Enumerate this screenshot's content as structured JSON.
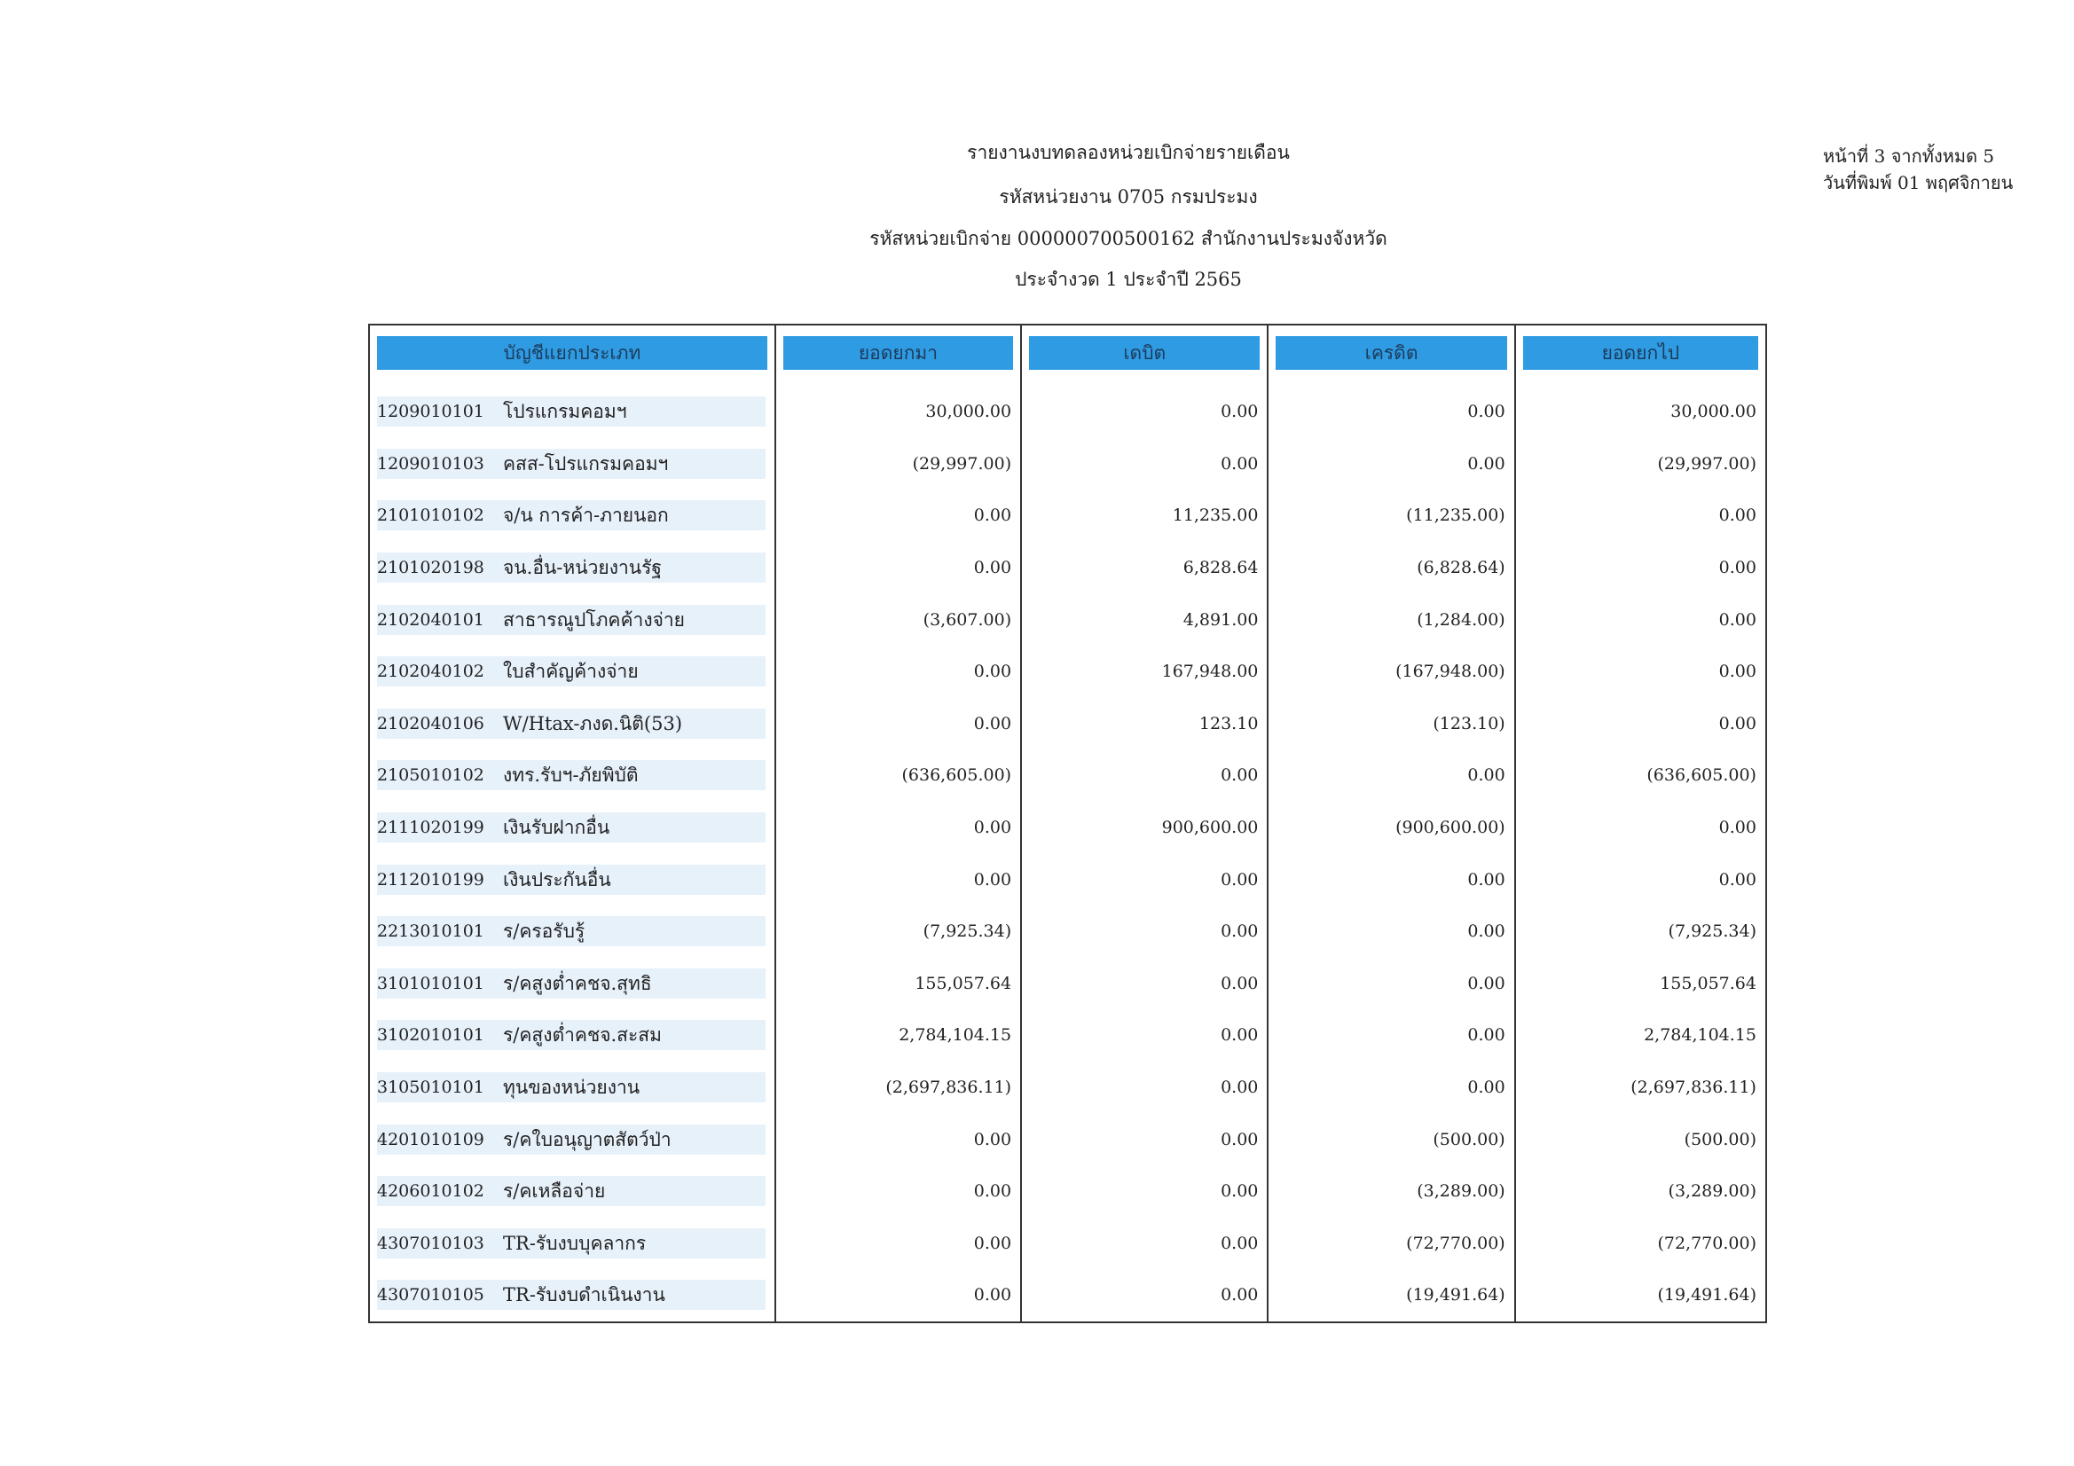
{
  "header": {
    "title_lines": [
      "รายงานงบทดลองหน่วยเบิกจ่ายรายเดือน",
      "รหัสหน่วยงาน 0705 กรมประมง",
      "รหัสหน่วยเบิกจ่าย 000000700500162 สำนักงานประมงจังหวัด",
      "ประจำงวด 1 ประจำปี 2565"
    ],
    "page_info": [
      "หน้าที่ 3 จากทั้งหมด 5",
      "วันที่พิมพ์ 01 พฤศจิกายน"
    ]
  },
  "table": {
    "columns": [
      "บัญชีแยกประเภท",
      "ยอดยกมา",
      "เดบิต",
      "เครดิต",
      "ยอดยกไป"
    ],
    "rows": [
      [
        "1209010101",
        "โปรแกรมคอมฯ",
        "30,000.00",
        "0.00",
        "0.00",
        "30,000.00"
      ],
      [
        "1209010103",
        "คสส-โปรแกรมคอมฯ",
        "(29,997.00)",
        "0.00",
        "0.00",
        "(29,997.00)"
      ],
      [
        "2101010102",
        "จ/น การค้า-ภายนอก",
        "0.00",
        "11,235.00",
        "(11,235.00)",
        "0.00"
      ],
      [
        "2101020198",
        "จน.อื่น-หน่วยงานรัฐ",
        "0.00",
        "6,828.64",
        "(6,828.64)",
        "0.00"
      ],
      [
        "2102040101",
        "สาธารณูปโภคค้างจ่าย",
        "(3,607.00)",
        "4,891.00",
        "(1,284.00)",
        "0.00"
      ],
      [
        "2102040102",
        "ใบสำคัญค้างจ่าย",
        "0.00",
        "167,948.00",
        "(167,948.00)",
        "0.00"
      ],
      [
        "2102040106",
        "W/Htax-ภงด.นิติ(53)",
        "0.00",
        "123.10",
        "(123.10)",
        "0.00"
      ],
      [
        "2105010102",
        "งทร.รับฯ-ภัยพิบัติ",
        "(636,605.00)",
        "0.00",
        "0.00",
        "(636,605.00)"
      ],
      [
        "2111020199",
        "เงินรับฝากอื่น",
        "0.00",
        "900,600.00",
        "(900,600.00)",
        "0.00"
      ],
      [
        "2112010199",
        "เงินประกันอื่น",
        "0.00",
        "0.00",
        "0.00",
        "0.00"
      ],
      [
        "2213010101",
        "ร/ครอรับรู้",
        "(7,925.34)",
        "0.00",
        "0.00",
        "(7,925.34)"
      ],
      [
        "3101010101",
        "ร/คสูงต่ำคชจ.สุทธิ",
        "155,057.64",
        "0.00",
        "0.00",
        "155,057.64"
      ],
      [
        "3102010101",
        "ร/คสูงต่ำคชจ.สะสม",
        "2,784,104.15",
        "0.00",
        "0.00",
        "2,784,104.15"
      ],
      [
        "3105010101",
        "ทุนของหน่วยงาน",
        "(2,697,836.11)",
        "0.00",
        "0.00",
        "(2,697,836.11)"
      ],
      [
        "4201010109",
        "ร/คใบอนุญาตสัตว์ป่า",
        "0.00",
        "0.00",
        "(500.00)",
        "(500.00)"
      ],
      [
        "4206010102",
        "ร/คเหลือจ่าย",
        "0.00",
        "0.00",
        "(3,289.00)",
        "(3,289.00)"
      ],
      [
        "4307010103",
        "TR-รับงบบุคลากร",
        "0.00",
        "0.00",
        "(72,770.00)",
        "(72,770.00)"
      ],
      [
        "4307010105",
        "TR-รับงบดำเนินงาน",
        "0.00",
        "0.00",
        "(19,491.64)",
        "(19,491.64)"
      ]
    ]
  }
}
